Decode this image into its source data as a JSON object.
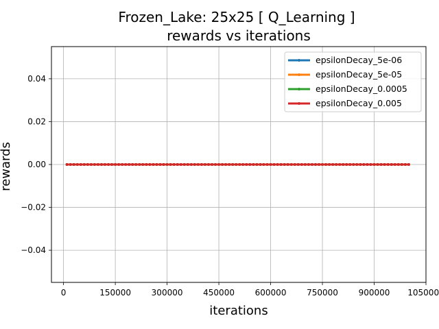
{
  "chart_data": {
    "type": "line",
    "title": "Frozen_Lake: 25x25 [ Q_Learning ]",
    "subtitle": "rewards vs iterations",
    "xlabel": "iterations",
    "ylabel": "rewards",
    "xlim": [
      -35000,
      1050000
    ],
    "ylim": [
      -0.055,
      0.055
    ],
    "xticks": [
      0,
      150000,
      300000,
      450000,
      600000,
      750000,
      900000,
      1050000
    ],
    "yticks": [
      -0.04,
      -0.02,
      0.0,
      0.02,
      0.04
    ],
    "ytick_labels": [
      "−0.04",
      "−0.02",
      "0.00",
      "0.02",
      "0.04"
    ],
    "grid": true,
    "legend_position": "top-right",
    "x": [
      10000,
      20000,
      30000,
      40000,
      50000,
      60000,
      70000,
      80000,
      90000,
      100000,
      110000,
      120000,
      130000,
      140000,
      150000,
      160000,
      170000,
      180000,
      190000,
      200000,
      210000,
      220000,
      230000,
      240000,
      250000,
      260000,
      270000,
      280000,
      290000,
      300000,
      310000,
      320000,
      330000,
      340000,
      350000,
      360000,
      370000,
      380000,
      390000,
      400000,
      410000,
      420000,
      430000,
      440000,
      450000,
      460000,
      470000,
      480000,
      490000,
      500000,
      510000,
      520000,
      530000,
      540000,
      550000,
      560000,
      570000,
      580000,
      590000,
      600000,
      610000,
      620000,
      630000,
      640000,
      650000,
      660000,
      670000,
      680000,
      690000,
      700000,
      710000,
      720000,
      730000,
      740000,
      750000,
      760000,
      770000,
      780000,
      790000,
      800000,
      810000,
      820000,
      830000,
      840000,
      850000,
      860000,
      870000,
      880000,
      890000,
      900000,
      910000,
      920000,
      930000,
      940000,
      950000,
      960000,
      970000,
      980000,
      990000,
      1000000
    ],
    "series": [
      {
        "name": "epsilonDecay_5e-06",
        "color": "#1f77b4",
        "value": 0.0
      },
      {
        "name": "epsilonDecay_5e-05",
        "color": "#ff7f0e",
        "value": 0.0
      },
      {
        "name": "epsilonDecay_0.0005",
        "color": "#2ca02c",
        "value": 0.0
      },
      {
        "name": "epsilonDecay_0.005",
        "color": "#d62728",
        "value": 0.0
      }
    ]
  }
}
